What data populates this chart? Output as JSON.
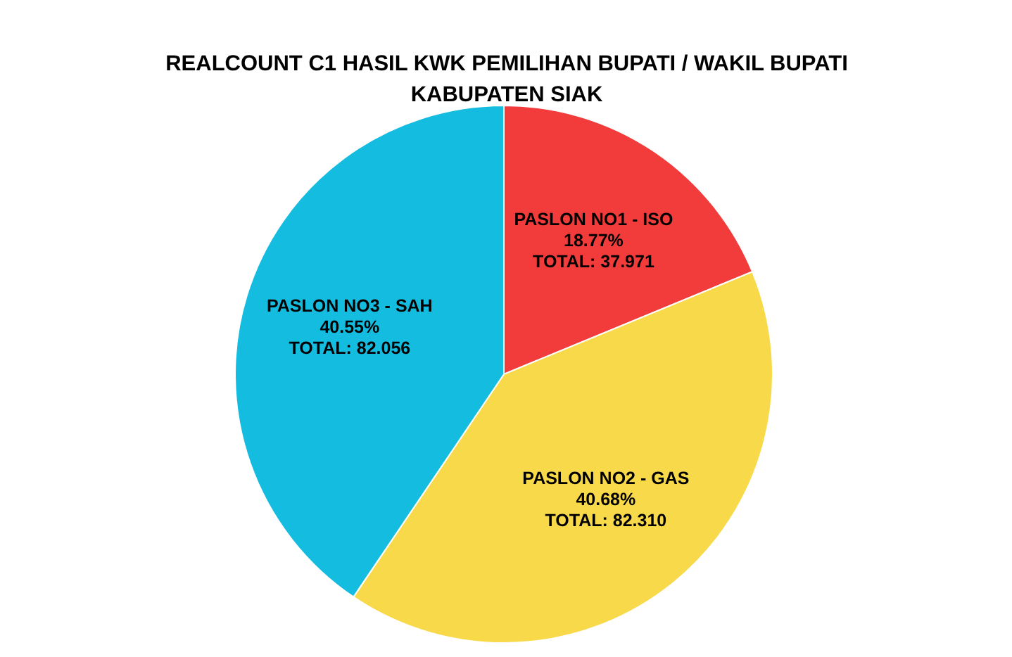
{
  "chart_data": {
    "type": "pie",
    "title": "REALCOUNT C1 HASIL KWK PEMILIHAN BUPATI / WAKIL BUPATI\nKABUPATEN SIAK",
    "categories": [
      "PASLON NO1 - ISO",
      "PASLON NO2 - GAS",
      "PASLON NO3 - SAH"
    ],
    "values": [
      18.77,
      40.68,
      40.55
    ],
    "value_labels": [
      "18.77%\nTOTAL: 37.971",
      "40.68%\nTOTAL: 82.310",
      "40.55%\nTOTAL: 82.056"
    ],
    "colors": [
      "#f23b3b",
      "#f8d94a",
      "#14bde0"
    ]
  }
}
